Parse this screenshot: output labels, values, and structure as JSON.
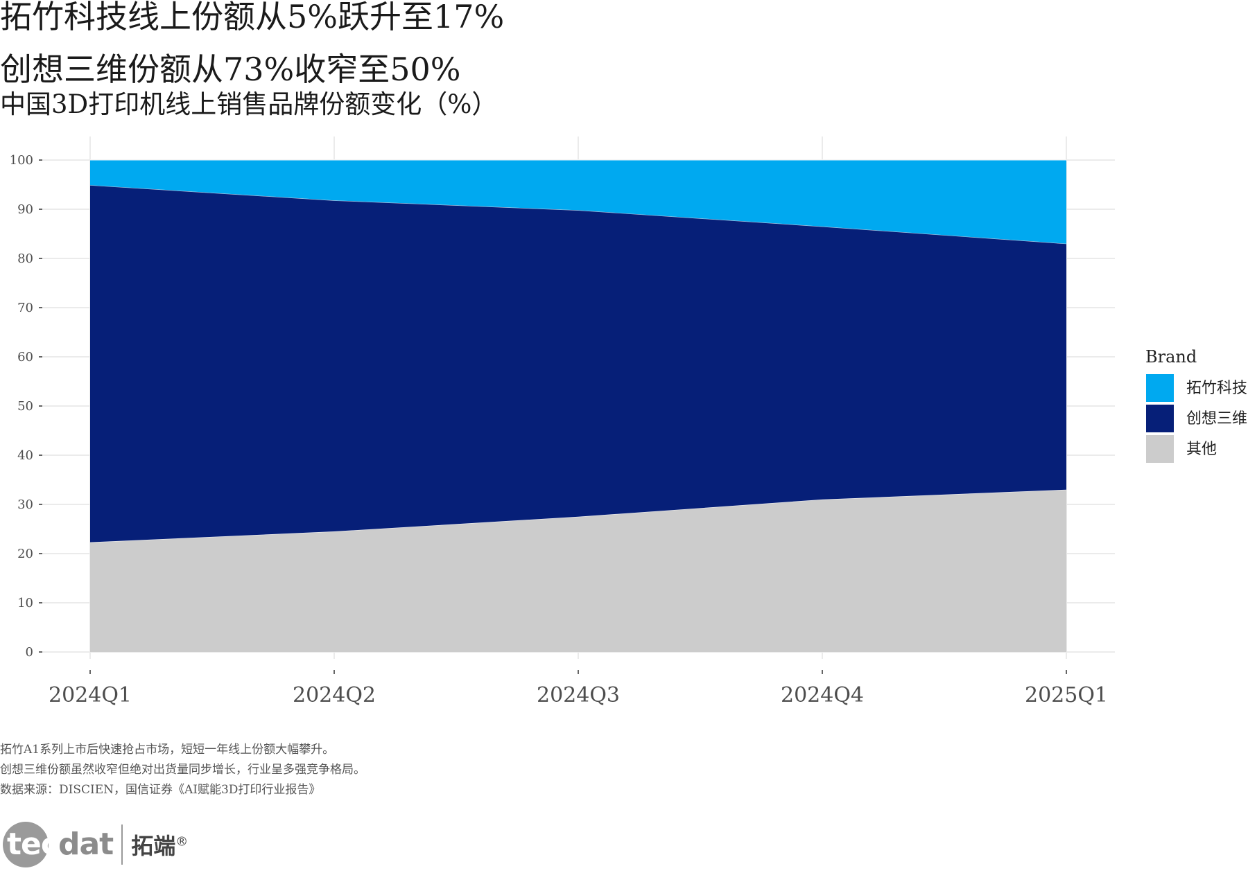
{
  "titles": {
    "line1": "拓竹科技线上份额从5%跃升至17%",
    "line2": "创想三维份额从73%收窄至50%",
    "subtitle": "中国3D打印机线上销售品牌份额变化（%）"
  },
  "colors": {
    "拓竹科技": "#00A9F0",
    "创想三维": "#061F78",
    "其他": "#CCCCCC",
    "grid": "#EBEBEB"
  },
  "chart_data": {
    "type": "area",
    "stacked": true,
    "title": "中国3D打印机线上销售品牌份额变化（%）",
    "xlabel": "",
    "ylabel": "",
    "categories": [
      "2024Q1",
      "2024Q2",
      "2024Q3",
      "2024Q4",
      "2025Q1"
    ],
    "ylim": [
      0,
      100
    ],
    "yticks": [
      0,
      10,
      20,
      30,
      40,
      50,
      60,
      70,
      80,
      90,
      100
    ],
    "grid": true,
    "legend": {
      "title": "Brand",
      "position": "right"
    },
    "series": [
      {
        "name": "其他",
        "values": [
          22.3,
          24.5,
          27.5,
          31.0,
          33.0
        ]
      },
      {
        "name": "创想三维",
        "values": [
          72.6,
          67.3,
          62.3,
          55.5,
          50.0
        ]
      },
      {
        "name": "拓竹科技",
        "values": [
          5.1,
          8.2,
          10.2,
          13.5,
          17.0
        ]
      }
    ]
  },
  "legend": {
    "title": "Brand",
    "items": [
      "拓竹科技",
      "创想三维",
      "其他"
    ]
  },
  "caption": {
    "line1": "拓竹A1系列上市后快速抢占市场，短短一年线上份额大幅攀升。",
    "line2": "创想三维份额虽然收窄但绝对出货量同步增长，行业呈多强竞争格局。",
    "line3": "数据来源：DISCIEN，国信证券《AI赋能3D打印行业报告》"
  },
  "logo": {
    "part1": "tec",
    "part2": "dat",
    "cn": "拓端",
    "mark": "®"
  }
}
